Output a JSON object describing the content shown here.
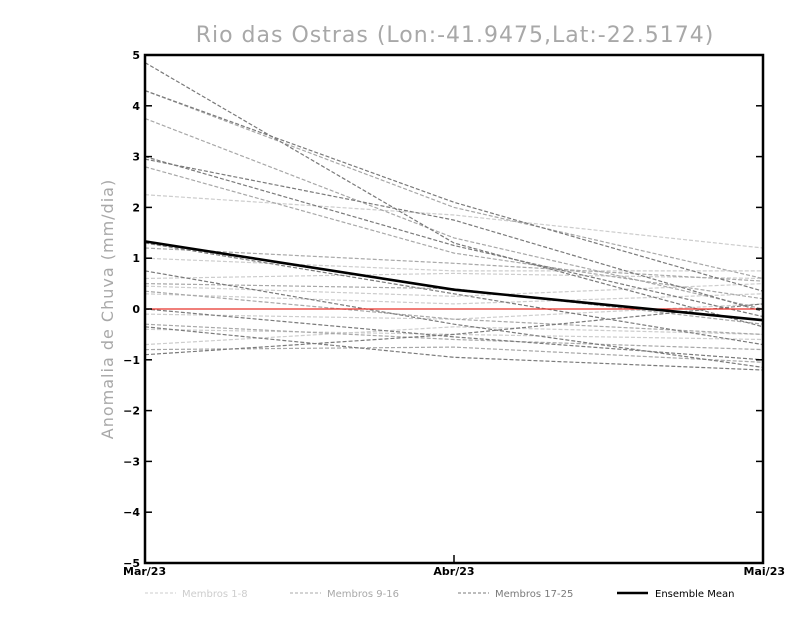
{
  "chart_data": {
    "type": "line",
    "title": "Rio das Ostras (Lon:-41.9475,Lat:-22.5174)",
    "xlabel": "",
    "ylabel": "Anomalia de Chuva (mm/dia)",
    "categories": [
      "Mar/23",
      "Abr/23",
      "Mai/23"
    ],
    "ylim": [
      -5,
      5
    ],
    "yticks": [
      "5",
      "4",
      "3",
      "2",
      "1",
      "0",
      "-1",
      "-2",
      "-3",
      "-4",
      "-5"
    ],
    "grid": false,
    "legend_position": "bottom",
    "colors": {
      "membros_1_8": "#cdcdcd",
      "membros_9_16": "#a8a8a8",
      "membros_17_25": "#7a7a7a",
      "ensemble_mean": "#000000",
      "zero_line": "#e8332a",
      "title": "#a8a8a8"
    },
    "legend": [
      "Membros 1-8",
      "Membros 9-16",
      "Membros 17-25",
      "Ensemble Mean"
    ],
    "series": [
      {
        "group": "membros_1_8",
        "values": [
          2.25,
          1.85,
          1.2
        ]
      },
      {
        "group": "membros_1_8",
        "values": [
          1.0,
          0.75,
          0.75
        ]
      },
      {
        "group": "membros_1_8",
        "values": [
          0.6,
          0.7,
          0.6
        ]
      },
      {
        "group": "membros_1_8",
        "values": [
          0.45,
          0.25,
          0.5
        ]
      },
      {
        "group": "membros_1_8",
        "values": [
          0.3,
          0.1,
          0.3
        ]
      },
      {
        "group": "membros_1_8",
        "values": [
          -0.1,
          -0.2,
          0.1
        ]
      },
      {
        "group": "membros_1_8",
        "values": [
          -0.4,
          -0.5,
          -0.6
        ]
      },
      {
        "group": "membros_1_8",
        "values": [
          -0.7,
          -0.35,
          -0.5
        ]
      },
      {
        "group": "membros_9_16",
        "values": [
          4.3,
          2.0,
          0.6
        ]
      },
      {
        "group": "membros_9_16",
        "values": [
          3.75,
          1.4,
          0.0
        ]
      },
      {
        "group": "membros_9_16",
        "values": [
          2.8,
          1.1,
          0.2
        ]
      },
      {
        "group": "membros_9_16",
        "values": [
          1.2,
          0.9,
          0.55
        ]
      },
      {
        "group": "membros_9_16",
        "values": [
          0.5,
          0.4,
          -0.3
        ]
      },
      {
        "group": "membros_9_16",
        "values": [
          0.35,
          -0.2,
          -0.5
        ]
      },
      {
        "group": "membros_9_16",
        "values": [
          -0.3,
          -0.6,
          -0.8
        ]
      },
      {
        "group": "membros_9_16",
        "values": [
          -0.8,
          -0.75,
          -1.05
        ]
      },
      {
        "group": "membros_17_25",
        "values": [
          4.85,
          1.3,
          -0.35
        ]
      },
      {
        "group": "membros_17_25",
        "values": [
          4.3,
          2.1,
          0.35
        ]
      },
      {
        "group": "membros_17_25",
        "values": [
          3.0,
          1.25,
          -0.15
        ]
      },
      {
        "group": "membros_17_25",
        "values": [
          2.95,
          1.75,
          -0.05
        ]
      },
      {
        "group": "membros_17_25",
        "values": [
          1.3,
          0.3,
          -0.7
        ]
      },
      {
        "group": "membros_17_25",
        "values": [
          0.75,
          -0.3,
          -1.15
        ]
      },
      {
        "group": "membros_17_25",
        "values": [
          0.0,
          -0.55,
          -1.0
        ]
      },
      {
        "group": "membros_17_25",
        "values": [
          -0.35,
          -0.95,
          -1.2
        ]
      },
      {
        "group": "membros_17_25",
        "values": [
          -0.9,
          -0.5,
          0.1
        ]
      }
    ],
    "ensemble_mean": {
      "name": "Ensemble Mean",
      "values": [
        1.33,
        0.38,
        -0.22
      ]
    }
  }
}
